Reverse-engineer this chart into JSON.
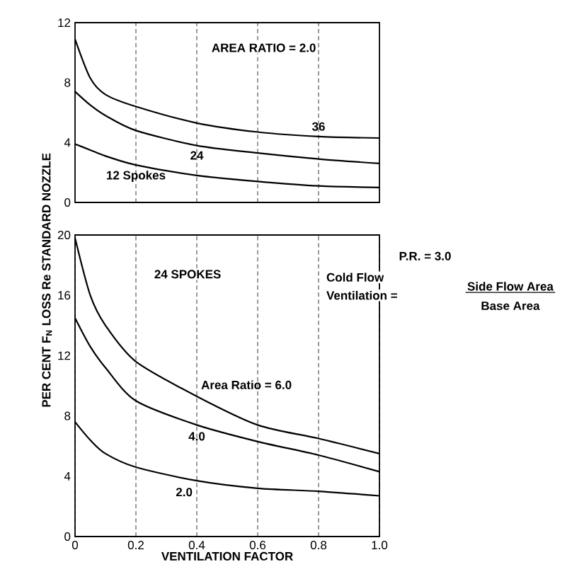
{
  "chart_data": [
    {
      "type": "line",
      "annotations": [
        "AREA RATIO = 2.0"
      ],
      "xlim": [
        0,
        1.0
      ],
      "xticks": [
        0.2,
        0.4,
        0.6,
        0.8
      ],
      "ylim": [
        0,
        12
      ],
      "yticks": [
        0,
        4,
        8,
        12
      ],
      "grid": "x",
      "tick_labels": "y",
      "line_style": "solid",
      "marker": "none",
      "series": [
        {
          "name": "12 Spokes",
          "color": "#000000",
          "x": [
            0,
            0.05,
            0.1,
            0.2,
            0.4,
            0.6,
            0.8,
            1.0
          ],
          "values": [
            3.9,
            3.5,
            3.1,
            2.5,
            1.8,
            1.4,
            1.1,
            1.0
          ]
        },
        {
          "name": "24",
          "color": "#000000",
          "x": [
            0,
            0.05,
            0.1,
            0.2,
            0.4,
            0.6,
            0.8,
            1.0
          ],
          "values": [
            7.4,
            6.5,
            5.8,
            4.8,
            3.8,
            3.3,
            2.9,
            2.6
          ]
        },
        {
          "name": "36",
          "color": "#000000",
          "x": [
            0,
            0.05,
            0.1,
            0.2,
            0.4,
            0.6,
            0.8,
            1.0
          ],
          "values": [
            10.9,
            8.3,
            7.2,
            6.4,
            5.3,
            4.7,
            4.4,
            4.3
          ]
        }
      ]
    },
    {
      "type": "line",
      "xlabel": "VENTILATION FACTOR",
      "ylabel": "PER CENT F$_{N}$ LOSS Re STANDARD NOZZLE",
      "annotations": [
        "24 SPOKES",
        "P.R. = 3.0",
        "Cold Flow",
        "Ventilation =",
        "Side Flow Area",
        "Base Area"
      ],
      "xlim": [
        0,
        1.0
      ],
      "xticks": [
        0,
        0.2,
        0.4,
        0.6,
        0.8,
        {
          "value": 1.0,
          "label": "1.0"
        }
      ],
      "ylim": [
        0,
        20
      ],
      "yticks": [
        0,
        4,
        8,
        12,
        16,
        20
      ],
      "grid": "x",
      "line_style": "solid",
      "marker": "none",
      "series": [
        {
          "name": "2.0",
          "color": "#000000",
          "x": [
            0,
            0.05,
            0.1,
            0.2,
            0.4,
            0.6,
            0.8,
            1.0
          ],
          "values": [
            7.6,
            6.4,
            5.5,
            4.6,
            3.7,
            3.2,
            3.0,
            2.7
          ]
        },
        {
          "name": "4.0",
          "color": "#000000",
          "x": [
            0,
            0.05,
            0.1,
            0.2,
            0.4,
            0.6,
            0.8,
            1.0
          ],
          "values": [
            14.5,
            12.6,
            11.2,
            9.0,
            7.4,
            6.3,
            5.4,
            4.3
          ]
        },
        {
          "name": "Area Ratio = 6.0",
          "color": "#000000",
          "x": [
            0,
            0.05,
            0.1,
            0.2,
            0.4,
            0.6,
            0.8,
            1.0
          ],
          "values": [
            19.8,
            16.0,
            14.0,
            11.6,
            9.3,
            7.4,
            6.5,
            5.5
          ]
        }
      ]
    }
  ]
}
